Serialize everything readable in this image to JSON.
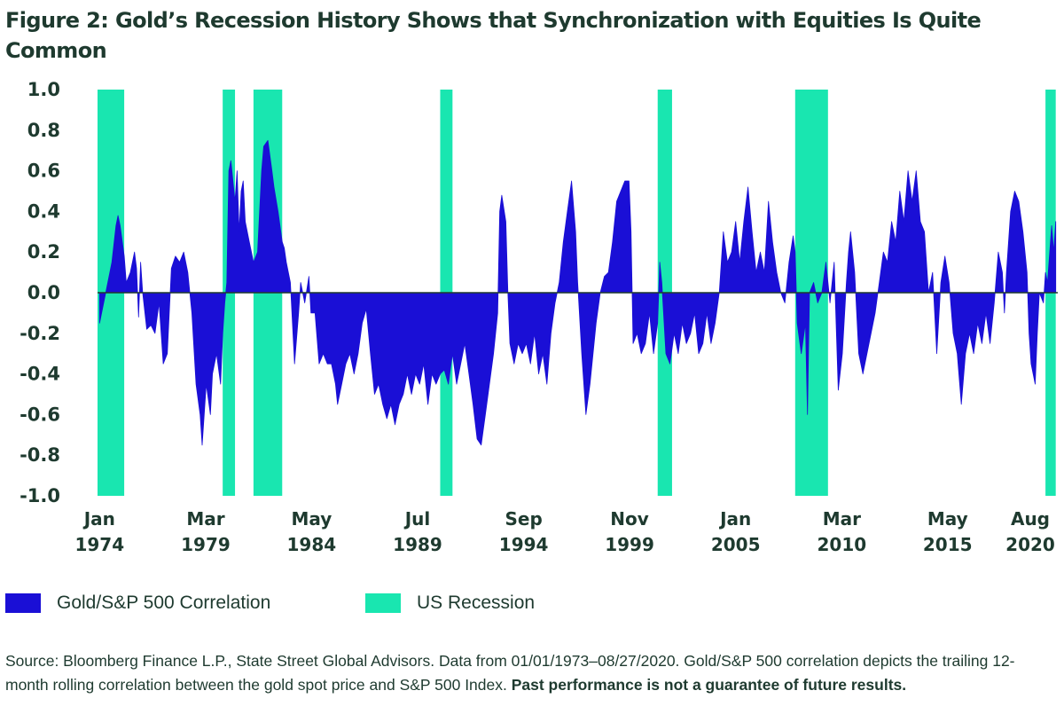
{
  "title": "Figure 2: Gold’s Recession History Shows that Synchronization with Equities Is Quite Common",
  "colors": {
    "correlation": "#1a0fd6",
    "recession": "#19e6b0",
    "text": "#1e3a2f",
    "zero_line": "#1e3a2f"
  },
  "legend": {
    "correlation_label": "Gold/S&P 500 Correlation",
    "recession_label": "US Recession"
  },
  "source": {
    "text": "Source: Bloomberg Finance L.P., State Street Global Advisors. Data from 01/01/1973–08/27/2020. Gold/S&P 500 correlation depicts the trailing 12-month rolling correlation between the gold spot price and S&P 500 Index. ",
    "bold_text": "Past performance is not a guarantee of future results."
  },
  "chart_data": {
    "type": "area",
    "ylim": [
      -1.0,
      1.0
    ],
    "xlim": [
      1973.9,
      2020.7
    ],
    "y_ticks": [
      "1.0",
      "0.8",
      "0.6",
      "0.4",
      "0.2",
      "0.0",
      "-0.2",
      "-0.4",
      "-0.6",
      "-0.8",
      "-1.0"
    ],
    "x_ticks": [
      {
        "month": "Jan",
        "year": "1974",
        "x": 1974.0
      },
      {
        "month": "Mar",
        "year": "1979",
        "x": 1979.17
      },
      {
        "month": "May",
        "year": "1984",
        "x": 1984.33
      },
      {
        "month": "Jul",
        "year": "1989",
        "x": 1989.5
      },
      {
        "month": "Sep",
        "year": "1994",
        "x": 1994.67
      },
      {
        "month": "Nov",
        "year": "1999",
        "x": 1999.83
      },
      {
        "month": "Jan",
        "year": "2005",
        "x": 2005.0
      },
      {
        "month": "Mar",
        "year": "2010",
        "x": 2010.17
      },
      {
        "month": "May",
        "year": "2015",
        "x": 2015.33
      },
      {
        "month": "Aug",
        "year": "2020",
        "x": 2020.58
      }
    ],
    "recessions": [
      {
        "start": 1973.9,
        "end": 1975.2
      },
      {
        "start": 1980.0,
        "end": 1980.6
      },
      {
        "start": 1981.5,
        "end": 1982.9
      },
      {
        "start": 1990.6,
        "end": 1991.2
      },
      {
        "start": 2001.2,
        "end": 2001.9
      },
      {
        "start": 2007.9,
        "end": 2009.5
      },
      {
        "start": 2020.1,
        "end": 2020.6
      }
    ],
    "series": [
      {
        "name": "Gold/S&P 500 Correlation",
        "points": [
          [
            1974.0,
            -0.15
          ],
          [
            1974.2,
            -0.05
          ],
          [
            1974.4,
            0.05
          ],
          [
            1974.6,
            0.15
          ],
          [
            1974.8,
            0.33
          ],
          [
            1974.9,
            0.38
          ],
          [
            1975.0,
            0.33
          ],
          [
            1975.2,
            0.18
          ],
          [
            1975.3,
            0.05
          ],
          [
            1975.5,
            0.1
          ],
          [
            1975.7,
            0.2
          ],
          [
            1975.8,
            0.12
          ],
          [
            1975.9,
            -0.12
          ],
          [
            1976.0,
            0.15
          ],
          [
            1976.1,
            0.0
          ],
          [
            1976.3,
            -0.18
          ],
          [
            1976.5,
            -0.16
          ],
          [
            1976.7,
            -0.2
          ],
          [
            1976.9,
            -0.05
          ],
          [
            1977.1,
            -0.35
          ],
          [
            1977.3,
            -0.3
          ],
          [
            1977.5,
            0.12
          ],
          [
            1977.7,
            0.18
          ],
          [
            1977.9,
            0.15
          ],
          [
            1978.1,
            0.2
          ],
          [
            1978.3,
            0.1
          ],
          [
            1978.5,
            -0.1
          ],
          [
            1978.7,
            -0.45
          ],
          [
            1978.9,
            -0.6
          ],
          [
            1979.0,
            -0.75
          ],
          [
            1979.2,
            -0.45
          ],
          [
            1979.4,
            -0.6
          ],
          [
            1979.5,
            -0.4
          ],
          [
            1979.7,
            -0.3
          ],
          [
            1979.9,
            -0.45
          ],
          [
            1980.0,
            -0.2
          ],
          [
            1980.1,
            -0.05
          ],
          [
            1980.2,
            0.05
          ],
          [
            1980.3,
            0.6
          ],
          [
            1980.4,
            0.65
          ],
          [
            1980.5,
            0.55
          ],
          [
            1980.6,
            0.45
          ],
          [
            1980.7,
            0.6
          ],
          [
            1980.8,
            0.3
          ],
          [
            1980.9,
            0.5
          ],
          [
            1981.0,
            0.55
          ],
          [
            1981.1,
            0.35
          ],
          [
            1981.3,
            0.25
          ],
          [
            1981.5,
            0.15
          ],
          [
            1981.7,
            0.2
          ],
          [
            1981.9,
            0.6
          ],
          [
            1982.0,
            0.72
          ],
          [
            1982.2,
            0.75
          ],
          [
            1982.4,
            0.6
          ],
          [
            1982.5,
            0.52
          ],
          [
            1982.7,
            0.4
          ],
          [
            1982.9,
            0.25
          ],
          [
            1983.0,
            0.22
          ],
          [
            1983.1,
            0.15
          ],
          [
            1983.3,
            0.05
          ],
          [
            1983.5,
            -0.35
          ],
          [
            1983.7,
            -0.1
          ],
          [
            1983.8,
            0.05
          ],
          [
            1983.9,
            0.0
          ],
          [
            1984.0,
            -0.05
          ],
          [
            1984.2,
            0.08
          ],
          [
            1984.3,
            -0.1
          ],
          [
            1984.5,
            -0.1
          ],
          [
            1984.7,
            -0.35
          ],
          [
            1984.9,
            -0.3
          ],
          [
            1985.1,
            -0.35
          ],
          [
            1985.3,
            -0.35
          ],
          [
            1985.5,
            -0.45
          ],
          [
            1985.6,
            -0.55
          ],
          [
            1985.8,
            -0.45
          ],
          [
            1986.0,
            -0.35
          ],
          [
            1986.2,
            -0.3
          ],
          [
            1986.4,
            -0.4
          ],
          [
            1986.6,
            -0.3
          ],
          [
            1986.8,
            -0.15
          ],
          [
            1987.0,
            -0.08
          ],
          [
            1987.2,
            -0.3
          ],
          [
            1987.4,
            -0.5
          ],
          [
            1987.6,
            -0.45
          ],
          [
            1987.8,
            -0.55
          ],
          [
            1988.0,
            -0.62
          ],
          [
            1988.2,
            -0.55
          ],
          [
            1988.4,
            -0.65
          ],
          [
            1988.6,
            -0.55
          ],
          [
            1988.8,
            -0.5
          ],
          [
            1989.0,
            -0.4
          ],
          [
            1989.2,
            -0.5
          ],
          [
            1989.4,
            -0.4
          ],
          [
            1989.6,
            -0.45
          ],
          [
            1989.8,
            -0.35
          ],
          [
            1990.0,
            -0.55
          ],
          [
            1990.2,
            -0.4
          ],
          [
            1990.4,
            -0.45
          ],
          [
            1990.6,
            -0.4
          ],
          [
            1990.8,
            -0.38
          ],
          [
            1991.0,
            -0.45
          ],
          [
            1991.2,
            -0.3
          ],
          [
            1991.4,
            -0.45
          ],
          [
            1991.6,
            -0.35
          ],
          [
            1991.8,
            -0.25
          ],
          [
            1992.0,
            -0.4
          ],
          [
            1992.2,
            -0.55
          ],
          [
            1992.4,
            -0.72
          ],
          [
            1992.6,
            -0.75
          ],
          [
            1992.8,
            -0.6
          ],
          [
            1993.0,
            -0.45
          ],
          [
            1993.2,
            -0.3
          ],
          [
            1993.4,
            -0.1
          ],
          [
            1993.5,
            0.4
          ],
          [
            1993.6,
            0.48
          ],
          [
            1993.8,
            0.35
          ],
          [
            1993.9,
            0.0
          ],
          [
            1994.0,
            -0.25
          ],
          [
            1994.2,
            -0.35
          ],
          [
            1994.4,
            -0.25
          ],
          [
            1994.6,
            -0.3
          ],
          [
            1994.8,
            -0.25
          ],
          [
            1995.0,
            -0.35
          ],
          [
            1995.2,
            -0.2
          ],
          [
            1995.4,
            -0.4
          ],
          [
            1995.6,
            -0.3
          ],
          [
            1995.8,
            -0.45
          ],
          [
            1996.0,
            -0.2
          ],
          [
            1996.2,
            -0.05
          ],
          [
            1996.4,
            0.05
          ],
          [
            1996.6,
            0.25
          ],
          [
            1996.8,
            0.4
          ],
          [
            1997.0,
            0.55
          ],
          [
            1997.2,
            0.3
          ],
          [
            1997.3,
            0.05
          ],
          [
            1997.5,
            -0.3
          ],
          [
            1997.7,
            -0.6
          ],
          [
            1997.9,
            -0.45
          ],
          [
            1998.0,
            -0.35
          ],
          [
            1998.2,
            -0.15
          ],
          [
            1998.4,
            0.0
          ],
          [
            1998.6,
            0.08
          ],
          [
            1998.8,
            0.1
          ],
          [
            1999.0,
            0.25
          ],
          [
            1999.2,
            0.45
          ],
          [
            1999.4,
            0.5
          ],
          [
            1999.6,
            0.55
          ],
          [
            1999.8,
            0.55
          ],
          [
            1999.9,
            0.3
          ],
          [
            2000.0,
            -0.25
          ],
          [
            2000.2,
            -0.2
          ],
          [
            2000.4,
            -0.3
          ],
          [
            2000.6,
            -0.25
          ],
          [
            2000.8,
            -0.1
          ],
          [
            2001.0,
            -0.3
          ],
          [
            2001.2,
            -0.15
          ],
          [
            2001.3,
            0.15
          ],
          [
            2001.4,
            0.05
          ],
          [
            2001.6,
            -0.3
          ],
          [
            2001.8,
            -0.35
          ],
          [
            2002.0,
            -0.2
          ],
          [
            2002.2,
            -0.3
          ],
          [
            2002.4,
            -0.15
          ],
          [
            2002.6,
            -0.25
          ],
          [
            2002.8,
            -0.2
          ],
          [
            2003.0,
            -0.1
          ],
          [
            2003.2,
            -0.3
          ],
          [
            2003.4,
            -0.25
          ],
          [
            2003.6,
            -0.1
          ],
          [
            2003.8,
            -0.25
          ],
          [
            2004.0,
            -0.15
          ],
          [
            2004.2,
            0.0
          ],
          [
            2004.4,
            0.3
          ],
          [
            2004.6,
            0.15
          ],
          [
            2004.8,
            0.2
          ],
          [
            2005.0,
            0.35
          ],
          [
            2005.2,
            0.15
          ],
          [
            2005.4,
            0.35
          ],
          [
            2005.6,
            0.52
          ],
          [
            2005.8,
            0.3
          ],
          [
            2006.0,
            0.1
          ],
          [
            2006.2,
            0.2
          ],
          [
            2006.4,
            0.1
          ],
          [
            2006.6,
            0.45
          ],
          [
            2006.8,
            0.25
          ],
          [
            2007.0,
            0.1
          ],
          [
            2007.2,
            0.0
          ],
          [
            2007.4,
            -0.05
          ],
          [
            2007.6,
            0.15
          ],
          [
            2007.8,
            0.28
          ],
          [
            2007.9,
            0.2
          ],
          [
            2008.0,
            -0.15
          ],
          [
            2008.2,
            -0.3
          ],
          [
            2008.4,
            -0.15
          ],
          [
            2008.5,
            -0.6
          ],
          [
            2008.6,
            0.0
          ],
          [
            2008.8,
            0.05
          ],
          [
            2009.0,
            -0.05
          ],
          [
            2009.2,
            0.0
          ],
          [
            2009.4,
            0.15
          ],
          [
            2009.6,
            -0.05
          ],
          [
            2009.8,
            0.15
          ],
          [
            2010.0,
            -0.48
          ],
          [
            2010.2,
            -0.3
          ],
          [
            2010.4,
            0.05
          ],
          [
            2010.5,
            0.2
          ],
          [
            2010.6,
            0.3
          ],
          [
            2010.8,
            0.1
          ],
          [
            2011.0,
            -0.3
          ],
          [
            2011.2,
            -0.4
          ],
          [
            2011.4,
            -0.3
          ],
          [
            2011.6,
            -0.2
          ],
          [
            2011.8,
            -0.1
          ],
          [
            2012.0,
            0.05
          ],
          [
            2012.2,
            0.2
          ],
          [
            2012.4,
            0.15
          ],
          [
            2012.6,
            0.35
          ],
          [
            2012.8,
            0.25
          ],
          [
            2013.0,
            0.5
          ],
          [
            2013.2,
            0.35
          ],
          [
            2013.4,
            0.6
          ],
          [
            2013.6,
            0.45
          ],
          [
            2013.8,
            0.6
          ],
          [
            2014.0,
            0.35
          ],
          [
            2014.2,
            0.3
          ],
          [
            2014.4,
            0.0
          ],
          [
            2014.6,
            0.1
          ],
          [
            2014.8,
            -0.3
          ],
          [
            2015.0,
            0.05
          ],
          [
            2015.2,
            0.18
          ],
          [
            2015.4,
            0.05
          ],
          [
            2015.6,
            -0.2
          ],
          [
            2015.8,
            -0.3
          ],
          [
            2016.0,
            -0.55
          ],
          [
            2016.2,
            -0.3
          ],
          [
            2016.4,
            -0.2
          ],
          [
            2016.6,
            -0.3
          ],
          [
            2016.8,
            -0.15
          ],
          [
            2017.0,
            -0.25
          ],
          [
            2017.2,
            -0.1
          ],
          [
            2017.4,
            -0.25
          ],
          [
            2017.6,
            -0.05
          ],
          [
            2017.8,
            0.2
          ],
          [
            2018.0,
            0.1
          ],
          [
            2018.1,
            -0.1
          ],
          [
            2018.2,
            0.1
          ],
          [
            2018.4,
            0.4
          ],
          [
            2018.6,
            0.5
          ],
          [
            2018.8,
            0.45
          ],
          [
            2019.0,
            0.3
          ],
          [
            2019.2,
            0.1
          ],
          [
            2019.3,
            -0.2
          ],
          [
            2019.4,
            -0.35
          ],
          [
            2019.6,
            -0.45
          ],
          [
            2019.7,
            -0.2
          ],
          [
            2019.8,
            0.0
          ],
          [
            2020.0,
            -0.05
          ],
          [
            2020.1,
            0.1
          ],
          [
            2020.2,
            0.05
          ],
          [
            2020.4,
            0.33
          ],
          [
            2020.5,
            0.2
          ],
          [
            2020.6,
            0.35
          ]
        ]
      }
    ]
  }
}
